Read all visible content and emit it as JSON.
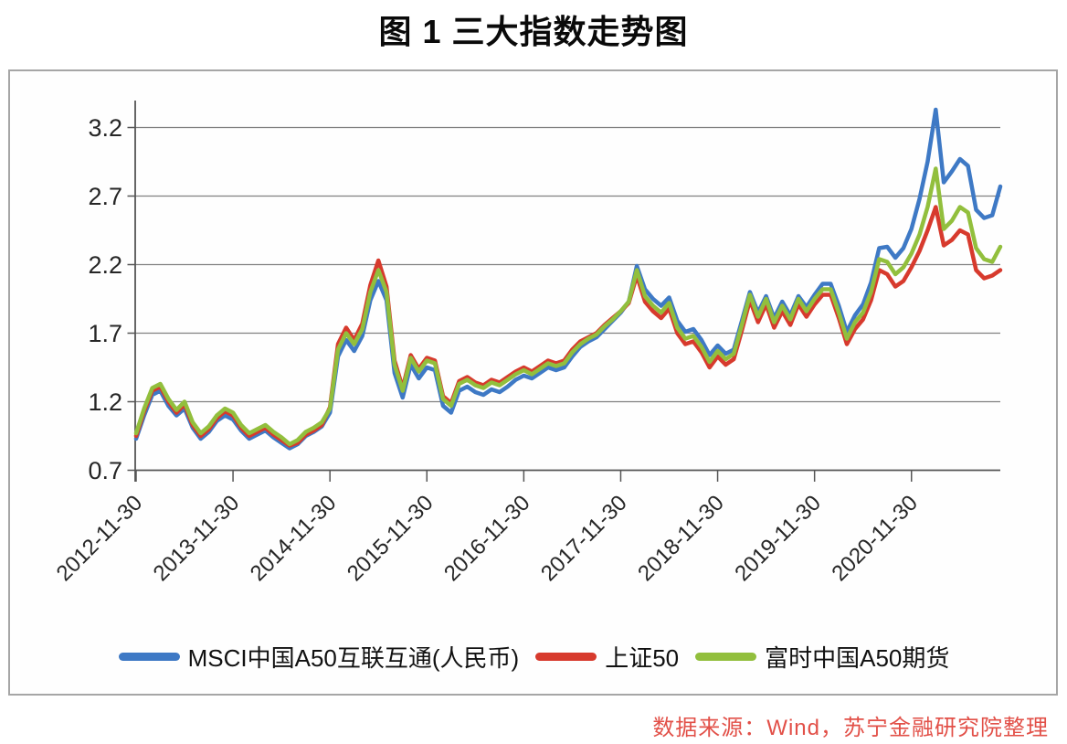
{
  "title": "图 1  三大指数走势图",
  "source_note": "数据来源：Wind，苏宁金融研究院整理",
  "colors": {
    "msci_blue": "#3e79c5",
    "sse50_red": "#d73a2d",
    "ftse_green": "#92bf3d",
    "gridline": "#808080",
    "axis": "#555555",
    "figure_border": "#a6a6a6",
    "tick_label": "#262626",
    "source_text": "#e25048"
  },
  "chart_data": {
    "type": "line",
    "title": "图 1  三大指数走势图",
    "xlabel": "",
    "ylabel": "",
    "grid": "horizontal",
    "legend_position": "bottom",
    "ylim": [
      0.7,
      3.45
    ],
    "y_ticks": [
      0.7,
      1.2,
      1.7,
      2.2,
      2.7,
      3.2
    ],
    "y_tick_labels": [
      "0.7",
      "1.2",
      "1.7",
      "2.2",
      "2.7",
      "3.2"
    ],
    "x_start": "2012-11",
    "x_end": "2021-10",
    "frequency": "monthly",
    "x_tick_labels": [
      "2012-11-30",
      "2013-11-30",
      "2014-11-30",
      "2015-11-30",
      "2016-11-30",
      "2017-11-30",
      "2018-11-30",
      "2019-11-30",
      "2020-11-30"
    ],
    "x_tick_month_indices": [
      0,
      12,
      24,
      36,
      48,
      60,
      72,
      84,
      96
    ],
    "series": [
      {
        "name": "MSCI中国A50互联互通(人民币)",
        "color": "#3e79c5",
        "values": [
          0.93,
          1.1,
          1.25,
          1.28,
          1.17,
          1.1,
          1.15,
          1.01,
          0.93,
          0.98,
          1.06,
          1.1,
          1.07,
          0.99,
          0.93,
          0.96,
          0.99,
          0.94,
          0.9,
          0.86,
          0.89,
          0.95,
          0.98,
          1.02,
          1.12,
          1.53,
          1.65,
          1.57,
          1.68,
          1.94,
          2.08,
          1.94,
          1.41,
          1.23,
          1.47,
          1.37,
          1.45,
          1.43,
          1.17,
          1.12,
          1.28,
          1.31,
          1.27,
          1.25,
          1.29,
          1.27,
          1.31,
          1.36,
          1.39,
          1.37,
          1.41,
          1.45,
          1.43,
          1.45,
          1.53,
          1.6,
          1.64,
          1.67,
          1.73,
          1.79,
          1.85,
          1.93,
          2.19,
          2.02,
          1.95,
          1.9,
          1.96,
          1.79,
          1.71,
          1.73,
          1.65,
          1.54,
          1.61,
          1.55,
          1.58,
          1.79,
          2.0,
          1.85,
          1.97,
          1.81,
          1.93,
          1.83,
          1.97,
          1.89,
          1.98,
          2.06,
          2.06,
          1.9,
          1.71,
          1.83,
          1.91,
          2.07,
          2.32,
          2.33,
          2.25,
          2.32,
          2.46,
          2.68,
          2.95,
          3.33,
          2.8,
          2.88,
          2.97,
          2.92,
          2.6,
          2.54,
          2.56,
          2.77
        ]
      },
      {
        "name": "上证50",
        "color": "#d73a2d",
        "values": [
          0.95,
          1.13,
          1.28,
          1.31,
          1.2,
          1.12,
          1.18,
          1.03,
          0.95,
          1.0,
          1.08,
          1.13,
          1.1,
          1.01,
          0.95,
          0.98,
          1.01,
          0.96,
          0.92,
          0.88,
          0.9,
          0.96,
          0.99,
          1.03,
          1.16,
          1.62,
          1.74,
          1.65,
          1.77,
          2.05,
          2.23,
          2.04,
          1.5,
          1.3,
          1.54,
          1.44,
          1.52,
          1.5,
          1.24,
          1.19,
          1.35,
          1.38,
          1.34,
          1.32,
          1.36,
          1.34,
          1.38,
          1.42,
          1.45,
          1.42,
          1.46,
          1.5,
          1.48,
          1.5,
          1.58,
          1.64,
          1.67,
          1.7,
          1.76,
          1.81,
          1.86,
          1.92,
          2.12,
          1.93,
          1.86,
          1.81,
          1.88,
          1.7,
          1.62,
          1.64,
          1.56,
          1.45,
          1.53,
          1.47,
          1.51,
          1.72,
          1.94,
          1.78,
          1.91,
          1.74,
          1.86,
          1.76,
          1.91,
          1.82,
          1.91,
          1.98,
          1.98,
          1.81,
          1.62,
          1.73,
          1.8,
          1.94,
          2.16,
          2.13,
          2.04,
          2.08,
          2.18,
          2.3,
          2.45,
          2.62,
          2.34,
          2.38,
          2.45,
          2.42,
          2.16,
          2.1,
          2.12,
          2.16
        ]
      },
      {
        "name": "富时中国A50期货",
        "color": "#92bf3d",
        "values": [
          0.97,
          1.15,
          1.3,
          1.33,
          1.22,
          1.14,
          1.2,
          1.05,
          0.97,
          1.02,
          1.1,
          1.15,
          1.12,
          1.03,
          0.97,
          1.0,
          1.03,
          0.98,
          0.94,
          0.89,
          0.92,
          0.98,
          1.01,
          1.05,
          1.15,
          1.58,
          1.7,
          1.62,
          1.73,
          2.0,
          2.16,
          2.0,
          1.47,
          1.28,
          1.52,
          1.42,
          1.5,
          1.48,
          1.22,
          1.17,
          1.33,
          1.36,
          1.32,
          1.3,
          1.34,
          1.32,
          1.36,
          1.4,
          1.43,
          1.4,
          1.44,
          1.48,
          1.46,
          1.48,
          1.56,
          1.62,
          1.66,
          1.69,
          1.75,
          1.8,
          1.86,
          1.93,
          2.16,
          1.97,
          1.9,
          1.85,
          1.92,
          1.74,
          1.66,
          1.68,
          1.6,
          1.49,
          1.57,
          1.51,
          1.55,
          1.76,
          1.98,
          1.82,
          1.95,
          1.78,
          1.9,
          1.8,
          1.95,
          1.86,
          1.95,
          2.02,
          2.02,
          1.85,
          1.66,
          1.78,
          1.85,
          2.0,
          2.24,
          2.22,
          2.13,
          2.18,
          2.28,
          2.42,
          2.62,
          2.9,
          2.46,
          2.52,
          2.62,
          2.58,
          2.32,
          2.24,
          2.22,
          2.33
        ]
      }
    ]
  }
}
